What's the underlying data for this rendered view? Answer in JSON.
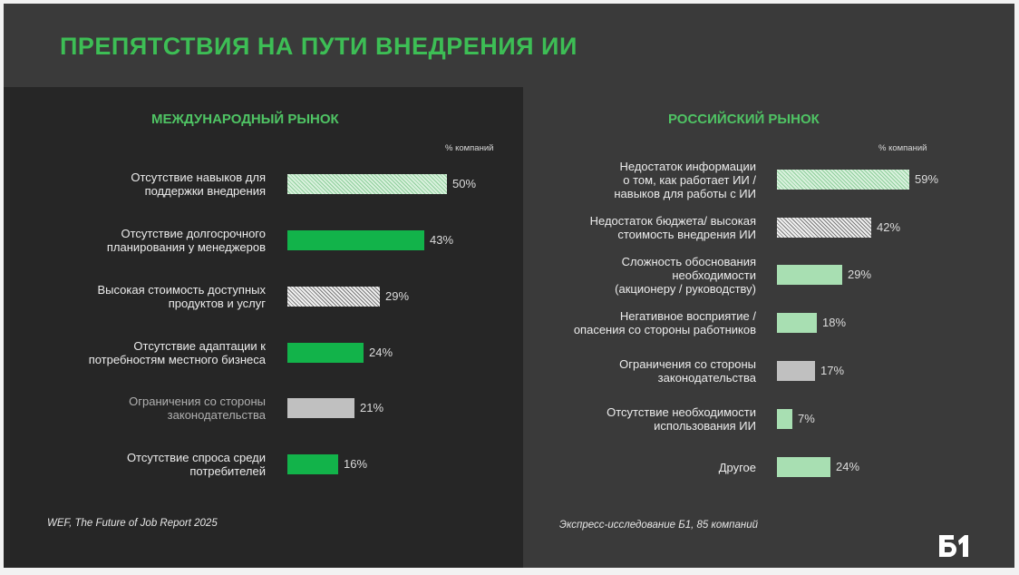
{
  "title": "ПРЕПЯТСТВИЯ НА ПУТИ ВНЕДРЕНИЯ ИИ",
  "unit_label": "% компаний",
  "left": {
    "subtitle": "МЕЖДУНАРОДНЫЙ РЫНОК",
    "source": "WEF, The Future of Job Report 2025"
  },
  "right": {
    "subtitle": "РОССИЙСКИЙ РЫНОК",
    "source": "Экспресс-исследование Б1, 85 компаний"
  },
  "logo_text": "Б1",
  "chart_data": [
    {
      "type": "bar",
      "orientation": "horizontal",
      "title": "МЕЖДУНАРОДНЫЙ РЫНОК",
      "unit": "% компаний",
      "categories": [
        "Отсутствие навыков для поддержки внедрения",
        "Отсутствие долгосрочного планирования у менеджеров",
        "Высокая стоимость доступных продуктов и услуг",
        "Отсутствие адаптации к потребностям местного бизнеса",
        "Ограничения со стороны законодательства",
        "Отсутствие спроса среди потребителей"
      ],
      "labels": [
        "Отсутствие навыков для\nподдержки внедрения",
        "Отсутствие долгосрочного\nпланирования у менеджеров",
        "Высокая стоимость доступных\nпродуктов и услуг",
        "Отсутствие адаптации к\nпотребностям местного бизнеса",
        "Ограничения со стороны\nзаконодательства",
        "Отсутствие спроса среди\nпотребителей"
      ],
      "values": [
        50,
        43,
        29,
        24,
        21,
        16
      ],
      "value_labels": [
        "50%",
        "43%",
        "29%",
        "24%",
        "21%",
        "16%"
      ],
      "styles": [
        "hatch-green",
        "green-solid",
        "hatch-gray",
        "green-solid",
        "gray",
        "green-solid"
      ],
      "colors": {
        "green-solid": "#12b34a",
        "hatch-green": "#a8dfb2",
        "hatch-gray": "#dcdcdc",
        "gray": "#c0c0c0"
      },
      "muted_labels": [
        4
      ],
      "grid": false
    },
    {
      "type": "bar",
      "orientation": "horizontal",
      "title": "РОССИЙСКИЙ РЫНОК",
      "unit": "% компаний",
      "categories": [
        "Недостаток информации о том, как работает ИИ / навыков для работы с ИИ",
        "Недостаток бюджета/ высокая стоимость внедрения ИИ",
        "Сложность обоснования необходимости (акционеру / руководству)",
        "Негативное восприятие / опасения со стороны работников",
        "Ограничения со стороны законодательства",
        "Отсутствие необходимости использования ИИ",
        "Другое"
      ],
      "labels": [
        "Недостаток информации\nо том, как работает ИИ /\nнавыков для работы с ИИ",
        "Недостаток бюджета/ высокая\nстоимость внедрения ИИ",
        "Сложность обоснования\nнеобходимости\n(акционеру / руководству)",
        "Негативное восприятие /\nопасения со стороны работников",
        "Ограничения со стороны\nзаконодательства",
        "Отсутствие необходимости\nиспользования ИИ",
        "Другое"
      ],
      "values": [
        59,
        42,
        29,
        18,
        17,
        7,
        24
      ],
      "value_labels": [
        "59%",
        "42%",
        "29%",
        "18%",
        "17%",
        "7%",
        "24%"
      ],
      "styles": [
        "hatch-green",
        "hatch-gray",
        "green-light",
        "green-light",
        "gray",
        "green-light",
        "green-light"
      ],
      "colors": {
        "green-light": "#a8dfb2",
        "hatch-green": "#a8dfb2",
        "hatch-gray": "#dcdcdc",
        "gray": "#c0c0c0"
      },
      "muted_labels": [],
      "grid": false
    }
  ]
}
